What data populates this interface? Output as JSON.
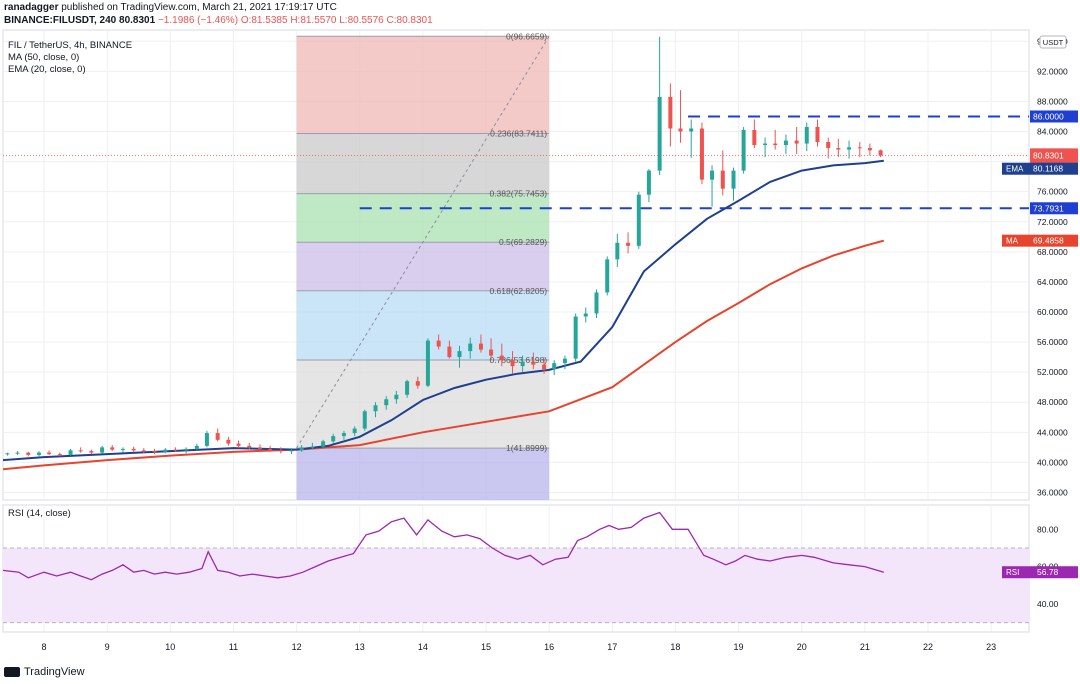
{
  "header": {
    "author": "ranadagger",
    "published": "published on TradingView.com, March 21, 2021 17:19:17 UTC",
    "symbol": "BINANCE:FILUSDT, 240",
    "last": "80.8301",
    "change": "−1.1986 (−1.46%)",
    "open": "O:81.5385",
    "high": "H:81.5570",
    "low": "L:80.5576",
    "close": "C:80.8301"
  },
  "legend": {
    "title": "FIL / TetherUS, 4h, BINANCE",
    "ma": "MA (50, close, 0)",
    "ema": "EMA (20, close, 0)",
    "rsi": "RSI (14, close)"
  },
  "brand": {
    "name": "TradingView"
  },
  "colors": {
    "up": "#26a69a",
    "down": "#ef5350",
    "ema": "#1f3f8f",
    "ma": "#e8432d",
    "rsi": "#9c27b0",
    "hline": "#1e3fcf",
    "text": "#131722"
  },
  "chart_data": {
    "type": "candlestick",
    "price_axis": {
      "unit": "USDT",
      "ticks": [
        96,
        92,
        88,
        84,
        80,
        76,
        72,
        68,
        64,
        60,
        56,
        52,
        48,
        44,
        40,
        36
      ],
      "tick_labels": [
        "96.0000",
        "92.0000",
        "88.0000",
        "84.0000",
        "80.0000",
        "76.0000",
        "72.0000",
        "68.0000",
        "64.0000",
        "60.0000",
        "56.0000",
        "52.0000",
        "48.0000",
        "44.0000",
        "40.0000",
        "36.0000"
      ],
      "range": [
        35,
        97.5
      ]
    },
    "time_axis": {
      "labels": [
        "8",
        "9",
        "10",
        "11",
        "12",
        "13",
        "14",
        "15",
        "16",
        "17",
        "18",
        "19",
        "20",
        "21",
        "22",
        "23"
      ],
      "range_days": [
        7.35,
        23.6
      ],
      "label_positions_days": [
        8,
        9,
        10,
        11,
        12,
        13,
        14,
        15,
        16,
        17,
        18,
        19,
        20,
        21,
        22,
        23
      ]
    },
    "candles": [
      [
        7.42,
        41.1,
        41.3,
        40.9,
        41.2
      ],
      [
        7.58,
        41.2,
        41.5,
        41.0,
        41.3
      ],
      [
        7.75,
        41.3,
        41.4,
        40.8,
        41.0
      ],
      [
        7.92,
        41.0,
        41.5,
        40.7,
        41.3
      ],
      [
        8.08,
        41.3,
        41.6,
        41.0,
        41.1
      ],
      [
        8.25,
        41.1,
        41.3,
        40.8,
        41.0
      ],
      [
        8.42,
        41.0,
        41.8,
        40.9,
        41.6
      ],
      [
        8.58,
        41.6,
        42.0,
        41.3,
        41.5
      ],
      [
        8.75,
        41.5,
        41.7,
        41.1,
        41.3
      ],
      [
        8.92,
        41.3,
        42.2,
        41.2,
        42.0
      ],
      [
        9.08,
        42.0,
        42.3,
        41.5,
        41.7
      ],
      [
        9.25,
        41.7,
        42.0,
        41.3,
        41.8
      ],
      [
        9.42,
        41.8,
        42.1,
        41.4,
        41.6
      ],
      [
        9.58,
        41.6,
        41.9,
        41.2,
        41.5
      ],
      [
        9.75,
        41.5,
        41.8,
        41.1,
        41.4
      ],
      [
        9.92,
        41.4,
        41.9,
        41.2,
        41.7
      ],
      [
        10.08,
        41.7,
        42.0,
        41.4,
        41.6
      ],
      [
        10.25,
        41.6,
        42.0,
        41.2,
        41.8
      ],
      [
        10.42,
        41.8,
        42.5,
        41.6,
        42.2
      ],
      [
        10.58,
        42.2,
        44.2,
        42.0,
        43.9
      ],
      [
        10.75,
        43.9,
        44.5,
        42.8,
        43.0
      ],
      [
        10.92,
        43.0,
        43.4,
        42.2,
        42.5
      ],
      [
        11.08,
        42.5,
        42.9,
        41.9,
        42.2
      ],
      [
        11.25,
        42.2,
        42.6,
        41.8,
        42.0
      ],
      [
        11.42,
        42.0,
        42.4,
        41.6,
        41.8
      ],
      [
        11.58,
        41.8,
        42.2,
        41.4,
        41.6
      ],
      [
        11.75,
        41.6,
        42.0,
        41.2,
        41.5
      ],
      [
        11.92,
        41.5,
        41.9,
        41.1,
        41.6
      ],
      [
        12.08,
        41.6,
        42.3,
        41.4,
        42.0
      ],
      [
        12.25,
        42.0,
        42.6,
        41.7,
        42.1
      ],
      [
        12.42,
        42.1,
        43.0,
        41.9,
        42.8
      ],
      [
        12.58,
        42.8,
        43.8,
        42.5,
        43.5
      ],
      [
        12.75,
        43.5,
        44.2,
        43.0,
        43.9
      ],
      [
        12.92,
        43.9,
        44.8,
        43.5,
        44.5
      ],
      [
        13.08,
        44.5,
        47.0,
        44.2,
        46.8
      ],
      [
        13.25,
        46.8,
        48.0,
        46.0,
        47.6
      ],
      [
        13.42,
        47.6,
        48.8,
        47.0,
        48.4
      ],
      [
        13.58,
        48.4,
        49.5,
        47.8,
        49.0
      ],
      [
        13.75,
        49.0,
        51.0,
        48.6,
        50.8
      ],
      [
        13.92,
        50.8,
        51.4,
        49.8,
        50.2
      ],
      [
        14.08,
        50.2,
        56.5,
        50.0,
        56.2
      ],
      [
        14.25,
        56.2,
        57.0,
        55.0,
        55.4
      ],
      [
        14.42,
        55.4,
        56.2,
        53.8,
        54.0
      ],
      [
        14.58,
        54.0,
        55.5,
        52.6,
        54.8
      ],
      [
        14.75,
        54.8,
        56.6,
        53.8,
        55.8
      ],
      [
        14.92,
        55.8,
        57.0,
        54.6,
        55.0
      ],
      [
        15.08,
        55.0,
        56.5,
        53.6,
        54.2
      ],
      [
        15.25,
        54.2,
        55.8,
        52.8,
        53.6
      ],
      [
        15.42,
        53.6,
        54.8,
        51.8,
        52.8
      ],
      [
        15.58,
        52.8,
        54.2,
        52.0,
        53.4
      ],
      [
        15.75,
        53.4,
        54.6,
        52.4,
        53.0
      ],
      [
        15.92,
        53.0,
        53.8,
        51.8,
        52.4
      ],
      [
        16.08,
        52.4,
        53.6,
        51.6,
        53.2
      ],
      [
        16.25,
        53.2,
        54.2,
        52.4,
        53.8
      ],
      [
        16.42,
        53.8,
        59.8,
        53.4,
        59.4
      ],
      [
        16.58,
        59.4,
        60.6,
        58.6,
        59.8
      ],
      [
        16.75,
        59.8,
        63.0,
        59.2,
        62.6
      ],
      [
        16.92,
        62.6,
        67.4,
        62.2,
        67.0
      ],
      [
        17.08,
        67.0,
        70.4,
        66.0,
        69.2
      ],
      [
        17.25,
        69.2,
        70.6,
        67.8,
        68.8
      ],
      [
        17.42,
        68.8,
        76.0,
        68.4,
        75.6
      ],
      [
        17.58,
        75.6,
        79.0,
        74.6,
        78.8
      ],
      [
        17.75,
        78.8,
        96.6,
        78.2,
        88.6
      ],
      [
        17.92,
        88.6,
        90.4,
        82.0,
        84.4
      ],
      [
        18.08,
        84.4,
        89.5,
        82.5,
        84.0
      ],
      [
        18.25,
        84.0,
        85.6,
        80.5,
        84.4
      ],
      [
        18.42,
        84.4,
        85.2,
        77.0,
        77.6
      ],
      [
        18.58,
        77.6,
        79.5,
        74.0,
        78.8
      ],
      [
        18.75,
        78.8,
        81.5,
        75.5,
        76.4
      ],
      [
        18.92,
        76.4,
        79.2,
        74.8,
        78.8
      ],
      [
        19.08,
        78.8,
        84.6,
        78.4,
        84.2
      ],
      [
        19.25,
        84.2,
        85.6,
        81.8,
        82.2
      ],
      [
        19.42,
        82.2,
        83.2,
        80.6,
        82.4
      ],
      [
        19.58,
        82.4,
        84.2,
        81.6,
        82.2
      ],
      [
        19.75,
        82.2,
        83.6,
        81.0,
        82.8
      ],
      [
        19.92,
        82.8,
        84.6,
        81.0,
        82.4
      ],
      [
        20.08,
        82.4,
        85.2,
        81.4,
        84.6
      ],
      [
        20.25,
        84.6,
        85.6,
        82.0,
        82.6
      ],
      [
        20.42,
        82.6,
        83.2,
        80.4,
        81.8
      ],
      [
        20.58,
        81.8,
        83.0,
        80.6,
        81.6
      ],
      [
        20.75,
        81.6,
        82.8,
        80.4,
        81.9
      ],
      [
        20.92,
        81.9,
        82.6,
        80.6,
        81.8
      ],
      [
        21.08,
        81.8,
        82.4,
        80.8,
        81.5
      ],
      [
        21.25,
        81.5,
        81.6,
        80.6,
        80.8
      ]
    ],
    "ema20": {
      "name": "EMA",
      "points": [
        [
          7.35,
          40.3
        ],
        [
          8.0,
          40.7
        ],
        [
          9.0,
          41.1
        ],
        [
          10.0,
          41.5
        ],
        [
          11.0,
          41.9
        ],
        [
          12.0,
          41.7
        ],
        [
          12.5,
          42.2
        ],
        [
          13.0,
          43.4
        ],
        [
          13.5,
          45.6
        ],
        [
          14.0,
          48.3
        ],
        [
          14.5,
          49.9
        ],
        [
          15.0,
          51.0
        ],
        [
          15.5,
          51.8
        ],
        [
          16.0,
          52.3
        ],
        [
          16.5,
          53.4
        ],
        [
          17.0,
          58.0
        ],
        [
          17.5,
          65.4
        ],
        [
          18.0,
          69.0
        ],
        [
          18.5,
          72.4
        ],
        [
          19.0,
          74.8
        ],
        [
          19.5,
          77.3
        ],
        [
          20.0,
          78.8
        ],
        [
          20.5,
          79.5
        ],
        [
          21.0,
          79.8
        ],
        [
          21.3,
          80.1
        ]
      ]
    },
    "ma50": {
      "name": "MA",
      "points": [
        [
          7.35,
          39.1
        ],
        [
          8.0,
          39.6
        ],
        [
          9.0,
          40.3
        ],
        [
          10.0,
          40.9
        ],
        [
          11.0,
          41.4
        ],
        [
          12.0,
          41.7
        ],
        [
          13.0,
          42.3
        ],
        [
          14.0,
          44.0
        ],
        [
          15.0,
          45.4
        ],
        [
          16.0,
          46.8
        ],
        [
          17.0,
          50.0
        ],
        [
          17.5,
          53.0
        ],
        [
          18.0,
          56.0
        ],
        [
          18.5,
          58.8
        ],
        [
          19.0,
          61.2
        ],
        [
          19.5,
          63.7
        ],
        [
          20.0,
          65.8
        ],
        [
          20.5,
          67.5
        ],
        [
          21.0,
          68.8
        ],
        [
          21.3,
          69.5
        ]
      ]
    },
    "fib": {
      "start_day": 12.0,
      "end_day": 16.0,
      "levels": [
        {
          "ratio": "0",
          "price": 96.6659,
          "label": "0(96.6659)"
        },
        {
          "ratio": "0.236",
          "price": 83.7411,
          "label": "0.236(83.7411)"
        },
        {
          "ratio": "0.382",
          "price": 75.7453,
          "label": "0.382(75.7453)"
        },
        {
          "ratio": "0.5",
          "price": 69.2829,
          "label": "0.5(69.2829)"
        },
        {
          "ratio": "0.618",
          "price": 62.8205,
          "label": "0.618(62.8205)"
        },
        {
          "ratio": "0.786",
          "price": 53.6198,
          "label": "0.786(53.6198)"
        },
        {
          "ratio": "1",
          "price": 41.8999,
          "label": "1(41.8999)"
        }
      ],
      "fills": [
        "#f0b8b5",
        "#c9c9cb",
        "#a8e2b0",
        "#cdbde8",
        "#b8dcf4",
        "#dcdcdc",
        "#b8b6ec"
      ]
    },
    "hlines": [
      {
        "price": 86.0,
        "label": "86.0000",
        "from_day": 18.2
      },
      {
        "price": 73.7931,
        "label": "73.7931",
        "from_day": 13.0
      }
    ],
    "price_tags": [
      {
        "name": "last",
        "price": 80.8301,
        "label": "80.8301",
        "sub": "02:40:55",
        "color": "#ef5350"
      },
      {
        "name": "EMA",
        "price": 80.1168,
        "label": "80.1168",
        "color": "#1f3f8f"
      },
      {
        "name": "MA",
        "price": 69.4858,
        "label": "69.4858",
        "color": "#e8432d"
      }
    ],
    "rsi": {
      "name": "RSI",
      "range": [
        25,
        93
      ],
      "ticks": [
        80,
        60,
        40
      ],
      "tick_labels": [
        "80.00",
        "60.00",
        "40.00"
      ],
      "band": [
        30,
        70
      ],
      "last_label": "56.78",
      "points": [
        [
          7.35,
          58
        ],
        [
          7.6,
          57
        ],
        [
          7.75,
          54
        ],
        [
          8.0,
          57
        ],
        [
          8.2,
          55
        ],
        [
          8.42,
          57
        ],
        [
          8.58,
          55
        ],
        [
          8.75,
          53
        ],
        [
          8.92,
          56
        ],
        [
          9.08,
          58
        ],
        [
          9.25,
          61
        ],
        [
          9.42,
          57
        ],
        [
          9.58,
          58
        ],
        [
          9.75,
          56
        ],
        [
          9.92,
          57
        ],
        [
          10.1,
          56
        ],
        [
          10.3,
          57
        ],
        [
          10.5,
          59
        ],
        [
          10.6,
          68
        ],
        [
          10.75,
          58
        ],
        [
          10.92,
          57
        ],
        [
          11.1,
          55
        ],
        [
          11.3,
          56
        ],
        [
          11.5,
          55
        ],
        [
          11.7,
          54
        ],
        [
          11.9,
          55
        ],
        [
          12.1,
          57
        ],
        [
          12.3,
          60
        ],
        [
          12.5,
          63
        ],
        [
          12.7,
          65
        ],
        [
          12.9,
          67
        ],
        [
          13.1,
          77
        ],
        [
          13.3,
          79
        ],
        [
          13.5,
          84
        ],
        [
          13.7,
          86
        ],
        [
          13.9,
          77
        ],
        [
          14.08,
          85
        ],
        [
          14.3,
          79
        ],
        [
          14.5,
          76
        ],
        [
          14.7,
          77
        ],
        [
          14.9,
          75
        ],
        [
          15.1,
          70
        ],
        [
          15.3,
          66
        ],
        [
          15.5,
          64
        ],
        [
          15.7,
          66
        ],
        [
          15.9,
          61
        ],
        [
          16.1,
          64
        ],
        [
          16.3,
          65
        ],
        [
          16.45,
          74
        ],
        [
          16.6,
          76
        ],
        [
          16.8,
          80
        ],
        [
          16.95,
          82
        ],
        [
          17.1,
          80
        ],
        [
          17.3,
          81
        ],
        [
          17.5,
          86
        ],
        [
          17.75,
          89
        ],
        [
          17.95,
          80
        ],
        [
          18.2,
          80
        ],
        [
          18.45,
          66
        ],
        [
          18.6,
          64
        ],
        [
          18.8,
          61
        ],
        [
          18.95,
          63
        ],
        [
          19.1,
          66
        ],
        [
          19.3,
          64
        ],
        [
          19.5,
          63
        ],
        [
          19.75,
          65
        ],
        [
          20.0,
          66
        ],
        [
          20.2,
          65
        ],
        [
          20.5,
          62
        ],
        [
          20.75,
          61
        ],
        [
          21.0,
          60
        ],
        [
          21.3,
          57
        ]
      ]
    }
  }
}
